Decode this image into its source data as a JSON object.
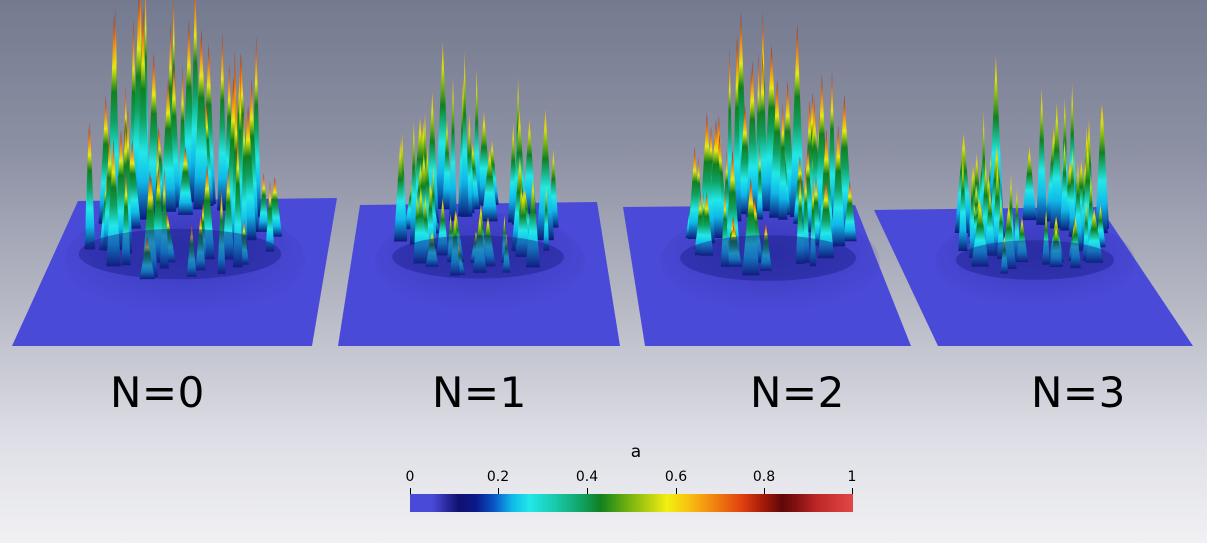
{
  "panels": [
    {
      "label": "N=0"
    },
    {
      "label": "N=1"
    },
    {
      "label": "N=2"
    },
    {
      "label": "N=3"
    }
  ],
  "colorbar": {
    "title": "a",
    "ticks": [
      "0",
      "0.2",
      "0.4",
      "0.6",
      "0.8",
      "1"
    ],
    "min": 0,
    "max": 1,
    "colormap": [
      "#4a4ad8",
      "#101070",
      "#22e8e8",
      "#108020",
      "#f0f010",
      "#f08010",
      "#600808",
      "#e04848"
    ]
  },
  "colors": {
    "plane": "#4a4ad8",
    "background_top": "#747a8f",
    "background_bottom": "#f1f1f4"
  }
}
